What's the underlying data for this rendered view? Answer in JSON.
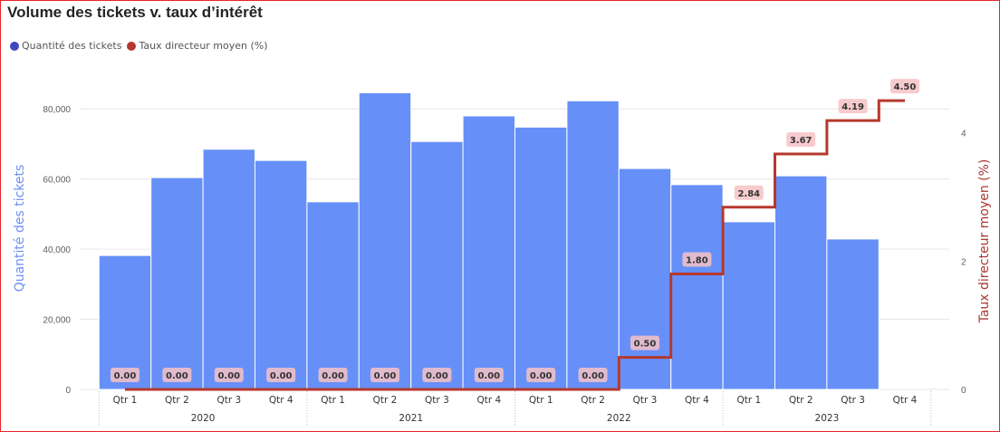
{
  "chart_data": {
    "type": "bar",
    "title": "Volume des tickets v. taux d’intérêt",
    "legend_position": "top-left",
    "grid": true,
    "categories": [
      "Qtr 1",
      "Qtr 2",
      "Qtr 3",
      "Qtr 4",
      "Qtr 1",
      "Qtr 2",
      "Qtr 3",
      "Qtr 4",
      "Qtr 1",
      "Qtr 2",
      "Qtr 3",
      "Qtr 4",
      "Qtr 1",
      "Qtr 2",
      "Qtr 3",
      "Qtr 4"
    ],
    "category_groups": [
      {
        "label": "2020",
        "span": 4
      },
      {
        "label": "2021",
        "span": 4
      },
      {
        "label": "2022",
        "span": 4
      },
      {
        "label": "2023",
        "span": 4
      }
    ],
    "series": [
      {
        "name": "Quantité des tickets",
        "type": "bar",
        "y_axis": "left",
        "color": "#6690f8",
        "legend_color": "#3f47bf",
        "values": [
          38200,
          60400,
          68500,
          65300,
          53500,
          84600,
          70700,
          78000,
          74800,
          82300,
          63000,
          58400,
          47800,
          60900,
          42900,
          null
        ]
      },
      {
        "name": "Taux directeur moyen (%)",
        "type": "line",
        "line_shape": "step",
        "y_axis": "right",
        "color": "#b5382e",
        "legend_color": "#b3382f",
        "values": [
          0,
          0,
          0,
          0,
          0,
          0,
          0,
          0,
          0,
          0,
          0.5,
          1.8,
          2.84,
          3.67,
          4.19,
          4.5
        ],
        "labels": [
          "0.00",
          "0.00",
          "0.00",
          "0.00",
          "0.00",
          "0.00",
          "0.00",
          "0.00",
          "0.00",
          "0.00",
          "0.50",
          "1.80",
          "2.84",
          "3.67",
          "4.19",
          "4.50"
        ]
      }
    ],
    "ylabel": "Quantité des tickets",
    "ylabel_color": "#6e8ff5",
    "y2label": "Taux directeur moyen (%)",
    "y2label_color": "#a83a32",
    "ylim": [
      0,
      86000
    ],
    "y2lim": [
      0,
      4.7
    ],
    "yticks": [
      0,
      20000,
      40000,
      60000,
      80000
    ],
    "ytick_labels": [
      "0",
      "20,000",
      "40,000",
      "60,000",
      "80,000"
    ],
    "y2ticks": [
      0,
      2,
      4
    ]
  }
}
